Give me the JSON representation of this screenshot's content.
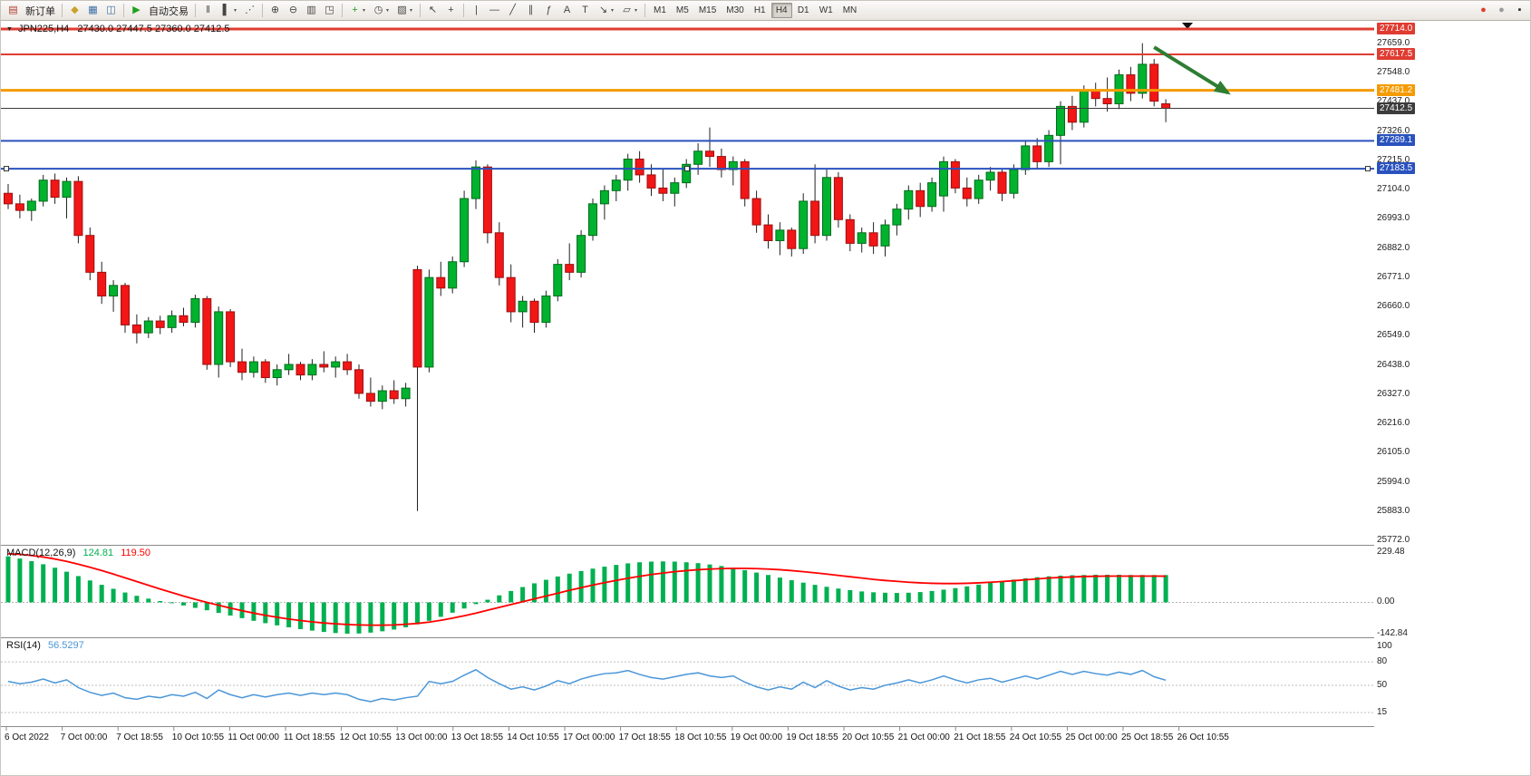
{
  "toolbar": {
    "timeframes": [
      "M1",
      "M5",
      "M15",
      "M30",
      "H1",
      "H4",
      "D1",
      "W1",
      "MN"
    ],
    "active_timeframe": "H4",
    "items": [
      {
        "type": "icon",
        "name": "new-order-icon",
        "glyph": "▤",
        "color": "#b03a30"
      },
      {
        "type": "label",
        "name": "new-order-label",
        "text": "新订单",
        "interactable": true
      },
      {
        "type": "sep"
      },
      {
        "type": "icon",
        "name": "profiles-icon",
        "glyph": "◆",
        "color": "#c9a227"
      },
      {
        "type": "icon",
        "name": "market-watch-icon",
        "glyph": "▦",
        "color": "#3a6ea5"
      },
      {
        "type": "icon",
        "name": "data-window-icon",
        "glyph": "◫",
        "color": "#3a6ea5"
      },
      {
        "type": "sep"
      },
      {
        "type": "icon",
        "name": "auto-trading-icon",
        "glyph": "▶",
        "color": "#1fa11f"
      },
      {
        "type": "label",
        "name": "auto-trading-label",
        "text": "自动交易",
        "interactable": true
      },
      {
        "type": "sep"
      },
      {
        "type": "icon",
        "name": "bar-chart-icon",
        "glyph": "‖",
        "color": "#444"
      },
      {
        "type": "icon",
        "name": "candlestick-icon",
        "glyph": "▌",
        "color": "#444",
        "drop": true
      },
      {
        "type": "icon",
        "name": "line-chart-icon",
        "glyph": "⋰",
        "color": "#444"
      },
      {
        "type": "sep"
      },
      {
        "type": "icon",
        "name": "zoom-in-icon",
        "glyph": "⊕",
        "color": "#444"
      },
      {
        "type": "icon",
        "name": "zoom-out-icon",
        "glyph": "⊖",
        "color": "#444"
      },
      {
        "type": "icon",
        "name": "tile-windows-icon",
        "glyph": "▥",
        "color": "#444"
      },
      {
        "type": "icon",
        "name": "arrange-windows-icon",
        "glyph": "◳",
        "color": "#444"
      },
      {
        "type": "sep"
      },
      {
        "type": "icon",
        "name": "indicators-icon",
        "glyph": "+",
        "color": "#1fa11f",
        "drop": true
      },
      {
        "type": "icon",
        "name": "periods-icon",
        "glyph": "◷",
        "color": "#444",
        "drop": true
      },
      {
        "type": "icon",
        "name": "templates-icon",
        "glyph": "▨",
        "color": "#444",
        "drop": true
      },
      {
        "type": "sep"
      },
      {
        "type": "icon",
        "name": "cursor-icon",
        "glyph": "↖",
        "color": "#444"
      },
      {
        "type": "icon",
        "name": "crosshair-icon",
        "glyph": "+",
        "color": "#444"
      },
      {
        "type": "sep"
      },
      {
        "type": "icon",
        "name": "vline-icon",
        "glyph": "|",
        "color": "#444"
      },
      {
        "type": "icon",
        "name": "hline-icon",
        "glyph": "—",
        "color": "#444"
      },
      {
        "type": "icon",
        "name": "trendline-icon",
        "glyph": "╱",
        "color": "#444"
      },
      {
        "type": "icon",
        "name": "channel-icon",
        "glyph": "∥",
        "color": "#444"
      },
      {
        "type": "icon",
        "name": "fibonacci-icon",
        "glyph": "ƒ",
        "color": "#444"
      },
      {
        "type": "icon",
        "name": "text-icon",
        "glyph": "A",
        "color": "#444"
      },
      {
        "type": "icon",
        "name": "text-label-icon",
        "glyph": "T",
        "color": "#444"
      },
      {
        "type": "icon",
        "name": "arrows-icon",
        "glyph": "↘",
        "color": "#444",
        "drop": true
      },
      {
        "type": "icon",
        "name": "shapes-icon",
        "glyph": "▱",
        "color": "#444",
        "drop": true
      },
      {
        "type": "sep"
      },
      {
        "type": "tf"
      },
      {
        "type": "spacer"
      },
      {
        "type": "icon",
        "name": "notification-icon",
        "glyph": "●",
        "color": "#e03c31"
      },
      {
        "type": "icon",
        "name": "community-icon",
        "glyph": "●",
        "color": "#999"
      },
      {
        "type": "icon",
        "name": "window-corner-icon",
        "glyph": "▪",
        "color": "#333"
      }
    ]
  },
  "chart": {
    "title_symbol": "JPN225,H4",
    "title_ohlc": "27430.0 27447.5 27360.0 27412.5"
  },
  "chart_data": {
    "type": "candlestick",
    "symbol": "JPN225",
    "timeframe": "H4",
    "colors": {
      "up": "#00b22d",
      "down": "#f21616",
      "wick": "#222",
      "up_border": "#006b1c",
      "down_border": "#9c0f0f"
    },
    "price_axis": {
      "top_price": 27714.0,
      "bottom_price": 25772.0,
      "ticks": [
        27659.0,
        27548.0,
        27437.0,
        27326.0,
        27215.0,
        27104.0,
        26993.0,
        26882.0,
        26771.0,
        26660.0,
        26549.0,
        26438.0,
        26327.0,
        26216.0,
        26105.0,
        25994.0,
        25883.0,
        25772.0
      ]
    },
    "hlines": [
      {
        "price": 27714.0,
        "label": "27714.0",
        "color": "#e03c31",
        "width": 3,
        "name": "resistance-line-27714"
      },
      {
        "price": 27617.5,
        "label": "27617.5",
        "color": "#e03c31",
        "width": 2,
        "name": "resistance-line-27617"
      },
      {
        "price": 27481.2,
        "label": "27481.2",
        "color": "#f59b00",
        "width": 3,
        "name": "orange-level-line-27481"
      },
      {
        "price": 27412.5,
        "label": "27412.5",
        "color": "#3c3c3c",
        "width": 1,
        "name": "bid-price-line",
        "role": "bid"
      },
      {
        "price": 27289.1,
        "label": "27289.1",
        "color": "#2a52be",
        "width": 2,
        "name": "support-line-27289"
      },
      {
        "price": 27183.5,
        "label": "27183.5",
        "color": "#2a52be",
        "width": 2,
        "name": "support-line-27183",
        "selected": true
      }
    ],
    "arrow": {
      "bar_from": 98,
      "price_from": 27645,
      "bar_to": 104.3,
      "price_to": 27472,
      "color": "#2e7d32",
      "name": "sell-signal-arrow"
    },
    "candles": [
      [
        27090,
        27125,
        27030,
        27050
      ],
      [
        27050,
        27085,
        26995,
        27025
      ],
      [
        27025,
        27070,
        26985,
        27060
      ],
      [
        27060,
        27160,
        27040,
        27140
      ],
      [
        27140,
        27165,
        27050,
        27075
      ],
      [
        27075,
        27150,
        26995,
        27135
      ],
      [
        27135,
        27155,
        26900,
        26930
      ],
      [
        26930,
        26960,
        26760,
        26790
      ],
      [
        26790,
        26830,
        26670,
        26700
      ],
      [
        26700,
        26760,
        26640,
        26740
      ],
      [
        26740,
        26750,
        26560,
        26590
      ],
      [
        26590,
        26630,
        26520,
        26560
      ],
      [
        26560,
        26620,
        26540,
        26605
      ],
      [
        26605,
        26625,
        26555,
        26580
      ],
      [
        26580,
        26645,
        26560,
        26625
      ],
      [
        26625,
        26655,
        26585,
        26600
      ],
      [
        26600,
        26705,
        26580,
        26690
      ],
      [
        26690,
        26700,
        26420,
        26440
      ],
      [
        26440,
        26660,
        26390,
        26640
      ],
      [
        26640,
        26650,
        26430,
        26450
      ],
      [
        26450,
        26500,
        26380,
        26410
      ],
      [
        26410,
        26470,
        26390,
        26450
      ],
      [
        26450,
        26460,
        26370,
        26390
      ],
      [
        26390,
        26440,
        26360,
        26420
      ],
      [
        26420,
        26480,
        26400,
        26440
      ],
      [
        26440,
        26450,
        26380,
        26400
      ],
      [
        26400,
        26460,
        26380,
        26440
      ],
      [
        26440,
        26490,
        26410,
        26430
      ],
      [
        26430,
        26470,
        26390,
        26450
      ],
      [
        26450,
        26480,
        26400,
        26420
      ],
      [
        26420,
        26440,
        26310,
        26330
      ],
      [
        26330,
        26390,
        26280,
        26300
      ],
      [
        26300,
        26360,
        26270,
        26340
      ],
      [
        26340,
        26380,
        26290,
        26310
      ],
      [
        26310,
        26370,
        26280,
        26350
      ],
      [
        26800,
        26815,
        25883,
        26430
      ],
      [
        26430,
        26800,
        26410,
        26770
      ],
      [
        26770,
        26830,
        26700,
        26730
      ],
      [
        26730,
        26850,
        26710,
        26830
      ],
      [
        26830,
        27100,
        26810,
        27070
      ],
      [
        27070,
        27215,
        27030,
        27190
      ],
      [
        27190,
        27200,
        26900,
        26940
      ],
      [
        26940,
        26980,
        26740,
        26770
      ],
      [
        26770,
        26820,
        26600,
        26640
      ],
      [
        26640,
        26700,
        26580,
        26680
      ],
      [
        26680,
        26690,
        26560,
        26600
      ],
      [
        26600,
        26720,
        26580,
        26700
      ],
      [
        26700,
        26840,
        26680,
        26820
      ],
      [
        26820,
        26900,
        26760,
        26790
      ],
      [
        26790,
        26950,
        26770,
        26930
      ],
      [
        26930,
        27070,
        26910,
        27050
      ],
      [
        27050,
        27120,
        26990,
        27100
      ],
      [
        27100,
        27160,
        27060,
        27140
      ],
      [
        27140,
        27240,
        27100,
        27220
      ],
      [
        27220,
        27250,
        27130,
        27160
      ],
      [
        27160,
        27200,
        27080,
        27110
      ],
      [
        27110,
        27180,
        27060,
        27090
      ],
      [
        27090,
        27150,
        27040,
        27130
      ],
      [
        27130,
        27220,
        27110,
        27200
      ],
      [
        27200,
        27280,
        27160,
        27250
      ],
      [
        27250,
        27340,
        27190,
        27230
      ],
      [
        27230,
        27260,
        27150,
        27180
      ],
      [
        27180,
        27230,
        27120,
        27210
      ],
      [
        27210,
        27220,
        27040,
        27070
      ],
      [
        27070,
        27100,
        26940,
        26970
      ],
      [
        26970,
        27010,
        26880,
        26910
      ],
      [
        26910,
        26980,
        26855,
        26950
      ],
      [
        26950,
        26960,
        26850,
        26880
      ],
      [
        26880,
        27090,
        26860,
        27060
      ],
      [
        27060,
        27200,
        26900,
        26930
      ],
      [
        26930,
        27180,
        26910,
        27150
      ],
      [
        27150,
        27170,
        26960,
        26990
      ],
      [
        26990,
        27010,
        26870,
        26900
      ],
      [
        26900,
        26960,
        26865,
        26940
      ],
      [
        26940,
        26980,
        26860,
        26890
      ],
      [
        26890,
        26990,
        26850,
        26970
      ],
      [
        26970,
        27050,
        26930,
        27030
      ],
      [
        27030,
        27120,
        26990,
        27100
      ],
      [
        27100,
        27130,
        27000,
        27040
      ],
      [
        27040,
        27150,
        27020,
        27130
      ],
      [
        27080,
        27230,
        27020,
        27210
      ],
      [
        27210,
        27220,
        27090,
        27110
      ],
      [
        27110,
        27150,
        27040,
        27070
      ],
      [
        27070,
        27160,
        27050,
        27140
      ],
      [
        27140,
        27190,
        27100,
        27170
      ],
      [
        27170,
        27180,
        27060,
        27090
      ],
      [
        27090,
        27200,
        27070,
        27180
      ],
      [
        27180,
        27290,
        27160,
        27270
      ],
      [
        27270,
        27300,
        27180,
        27210
      ],
      [
        27210,
        27330,
        27190,
        27310
      ],
      [
        27310,
        27440,
        27200,
        27420
      ],
      [
        27420,
        27460,
        27330,
        27360
      ],
      [
        27360,
        27500,
        27340,
        27480
      ],
      [
        27480,
        27510,
        27420,
        27450
      ],
      [
        27450,
        27530,
        27400,
        27430
      ],
      [
        27430,
        27560,
        27410,
        27540
      ],
      [
        27540,
        27570,
        27440,
        27470
      ],
      [
        27470,
        27660,
        27450,
        27580
      ],
      [
        27580,
        27600,
        27420,
        27440
      ],
      [
        27430,
        27447.5,
        27360,
        27412.5
      ]
    ],
    "macd": {
      "label": "MACD(12,26,9)",
      "value_main": "124.81",
      "value_signal": "119.50",
      "scale_max": 229.48,
      "scale_min": -142.84,
      "scale_labels": [
        "229.48",
        "0.00",
        "-142.84"
      ],
      "colors": {
        "histogram": "#00b050",
        "signal": "#ff0000"
      },
      "histogram": [
        210,
        200,
        188,
        174,
        158,
        140,
        120,
        100,
        80,
        62,
        45,
        30,
        17,
        6,
        -4,
        -14,
        -25,
        -36,
        -48,
        -60,
        -72,
        -84,
        -95,
        -105,
        -114,
        -122,
        -129,
        -135,
        -140,
        -142.8,
        -142,
        -138,
        -132,
        -124,
        -114,
        -100,
        -84,
        -66,
        -47,
        -28,
        -8,
        12,
        32,
        52,
        70,
        87,
        103,
        118,
        131,
        143,
        154,
        163,
        171,
        178,
        183,
        186,
        187,
        186,
        183,
        179,
        173,
        166,
        157,
        147,
        136,
        125,
        113,
        101,
        90,
        80,
        71,
        63,
        56,
        50,
        46,
        44,
        43,
        44,
        47,
        52,
        58,
        65,
        73,
        81,
        89,
        97,
        104,
        110,
        115,
        119,
        122,
        124,
        125,
        126,
        126,
        126,
        125,
        125,
        124.9,
        124.81
      ],
      "signal": [
        222,
        219,
        214,
        207,
        198,
        187,
        174,
        160,
        145,
        129,
        112,
        95,
        78,
        61,
        45,
        29,
        14,
        0,
        -13,
        -26,
        -38,
        -49,
        -59,
        -68,
        -76,
        -83,
        -89,
        -94,
        -98,
        -101,
        -103,
        -104,
        -104,
        -103,
        -100,
        -96,
        -90,
        -82,
        -72,
        -61,
        -49,
        -36,
        -23,
        -10,
        3,
        16,
        29,
        42,
        55,
        67,
        79,
        90,
        100,
        110,
        119,
        127,
        134,
        140,
        145,
        149,
        152,
        154,
        155,
        155,
        154,
        152,
        149,
        145,
        140,
        135,
        129,
        123,
        117,
        111,
        105,
        100,
        96,
        92,
        89,
        87,
        86,
        86,
        87,
        89,
        92,
        95,
        99,
        103,
        107,
        111,
        114,
        116,
        118,
        119,
        120,
        120,
        120,
        120,
        119.8,
        119.5
      ]
    },
    "rsi": {
      "label": "RSI(14)",
      "value": "56.5297",
      "color": "#4a96d8",
      "scale_labels": [
        100,
        80,
        50,
        15
      ],
      "levels": [
        80,
        50,
        15
      ],
      "values": [
        55,
        52,
        54,
        58,
        53,
        57,
        47,
        41,
        37,
        40,
        34,
        32,
        36,
        34,
        38,
        36,
        41,
        33,
        44,
        38,
        34,
        38,
        35,
        38,
        40,
        37,
        40,
        38,
        40,
        38,
        32,
        29,
        33,
        31,
        34,
        36,
        55,
        52,
        55,
        63,
        70,
        60,
        52,
        45,
        48,
        44,
        49,
        56,
        52,
        58,
        62,
        65,
        66,
        69,
        64,
        60,
        58,
        61,
        64,
        66,
        62,
        60,
        62,
        54,
        48,
        44,
        48,
        45,
        54,
        47,
        56,
        49,
        44,
        47,
        45,
        50,
        53,
        57,
        53,
        57,
        62,
        57,
        53,
        57,
        59,
        54,
        58,
        62,
        58,
        63,
        68,
        64,
        68,
        65,
        63,
        67,
        64,
        69,
        61,
        56.53
      ]
    },
    "time_axis": [
      "6 Oct 2022",
      "7 Oct 00:00",
      "7 Oct 18:55",
      "10 Oct 10:55",
      "11 Oct 00:00",
      "11 Oct 18:55",
      "12 Oct 10:55",
      "13 Oct 00:00",
      "13 Oct 18:55",
      "14 Oct 10:55",
      "17 Oct 00:00",
      "17 Oct 18:55",
      "18 Oct 10:55",
      "19 Oct 00:00",
      "19 Oct 18:55",
      "20 Oct 10:55",
      "21 Oct 00:00",
      "21 Oct 18:55",
      "24 Oct 10:55",
      "25 Oct 00:00",
      "25 Oct 18:55",
      "26 Oct 10:55"
    ]
  }
}
